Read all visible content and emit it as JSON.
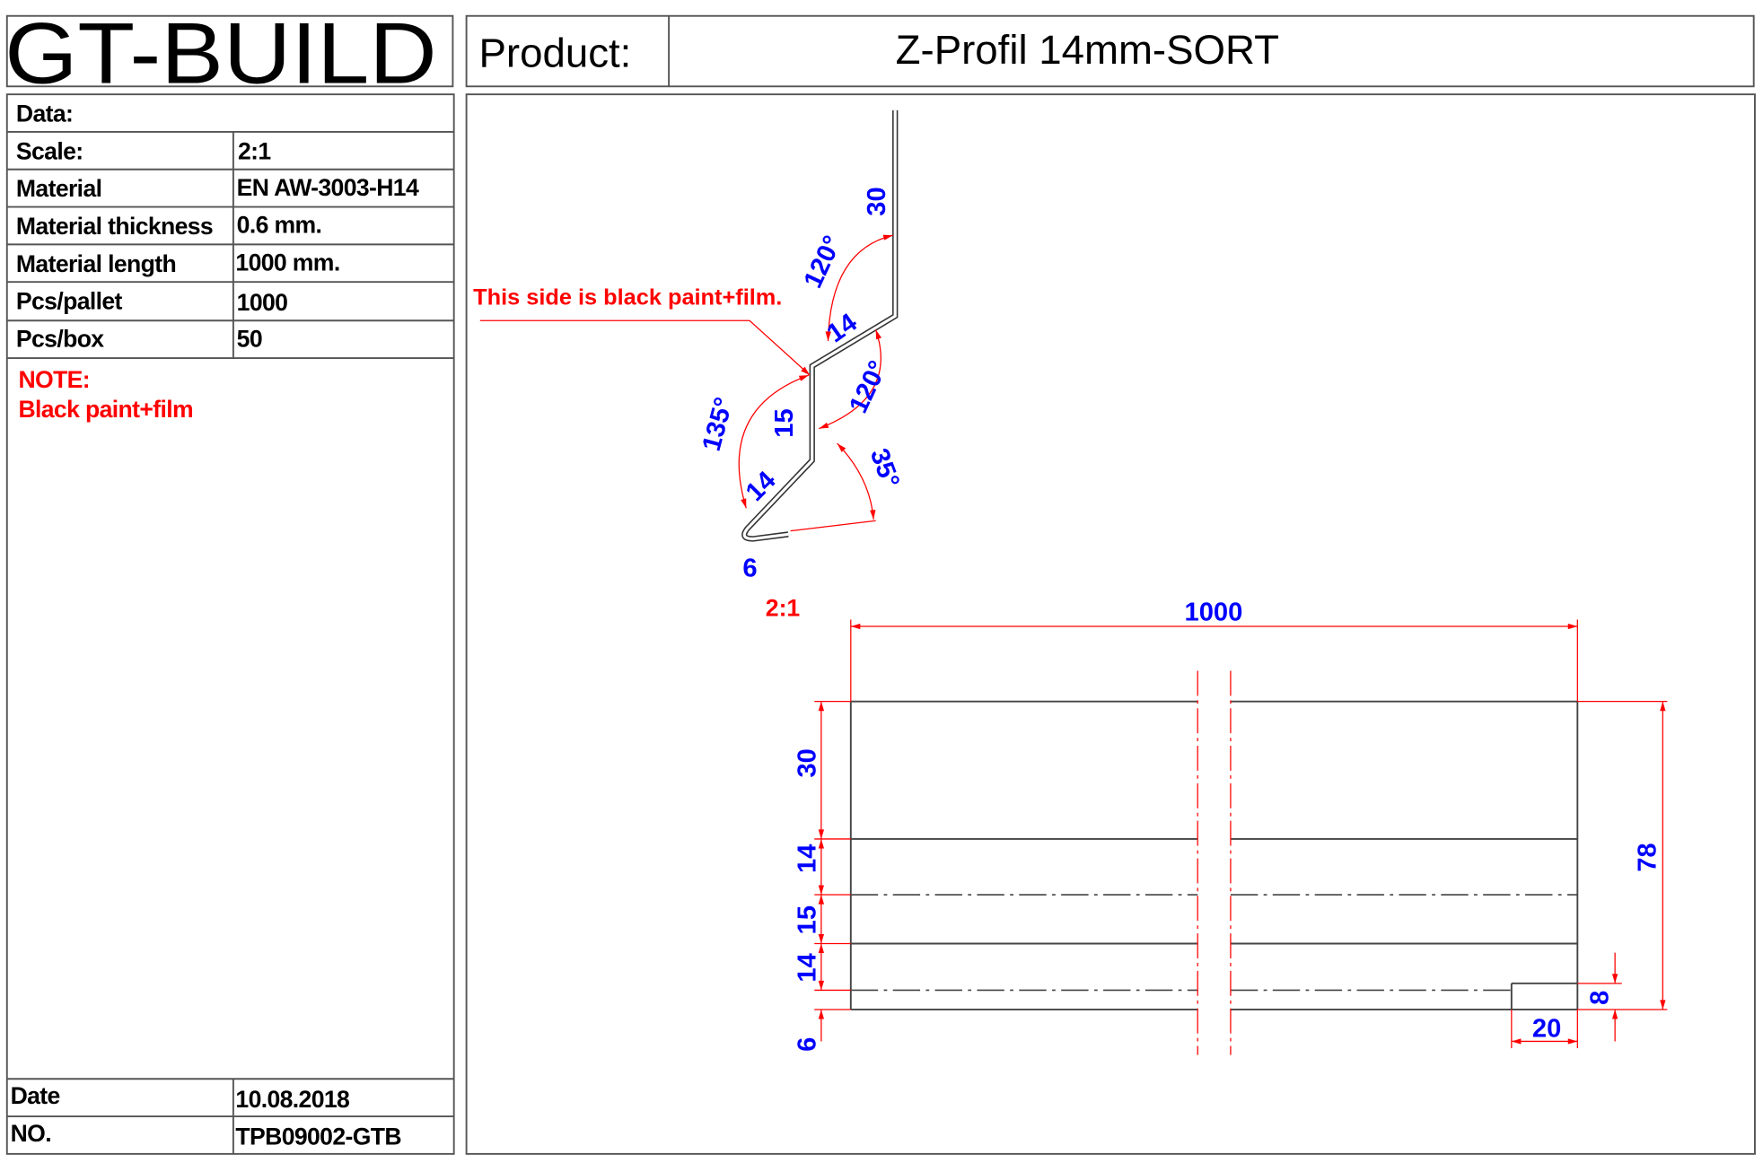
{
  "brand": "GT-BUILD",
  "product": {
    "label": "Product:",
    "value": "Z-Profil 14mm-SORT"
  },
  "info": {
    "header": "Data:",
    "rows": [
      {
        "label": "Scale:",
        "value": "2:1"
      },
      {
        "label": "Material",
        "value": "EN AW-3003-H14"
      },
      {
        "label": "Material thickness",
        "value": "0.6 mm."
      },
      {
        "label": "Material length",
        "value": "1000 mm."
      },
      {
        "label": "Pcs/pallet",
        "value": "1000"
      },
      {
        "label": "Pcs/box",
        "value": "50"
      }
    ],
    "note_title": "NOTE:",
    "note_text": "Black paint+film",
    "footer": [
      {
        "label": "Date",
        "value": "10.08.2018"
      },
      {
        "label": "NO.",
        "value": "TPB09002-GTB"
      }
    ]
  },
  "profile": {
    "callout": "This side is black paint+film.",
    "scale": "2:1",
    "dims": {
      "top": "30",
      "angle_top": "120°",
      "seg1": "14",
      "angle_mid": "120°",
      "web": "15",
      "angle_left": "135°",
      "seg2": "14",
      "angle_bottom": "35°",
      "hem": "6"
    }
  },
  "plan": {
    "length": "1000",
    "left_dims": [
      "30",
      "14",
      "15",
      "14",
      "6"
    ],
    "total": "78",
    "notch_height": "8",
    "notch_width": "20"
  },
  "colors": {
    "dimension_text": "#0000ff",
    "dimension_line": "#ff0000",
    "note": "#ff0000"
  }
}
